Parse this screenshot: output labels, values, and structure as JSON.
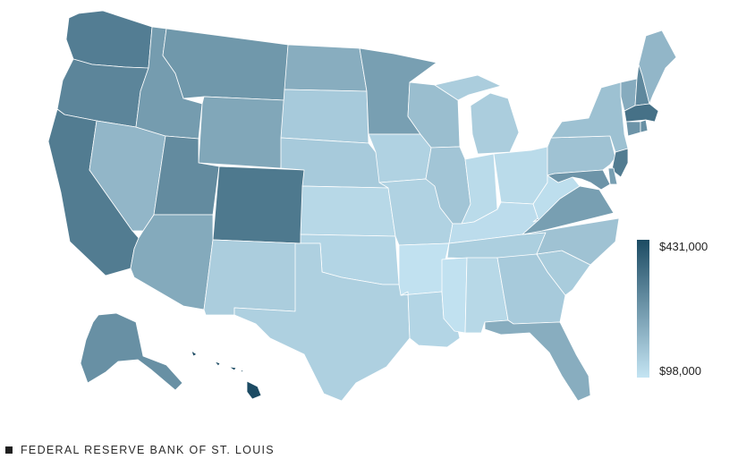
{
  "legend": {
    "max_label": "$431,000",
    "min_label": "$98,000",
    "min_value": 98000,
    "max_value": 431000,
    "color_low": "#c4e4f3",
    "color_high": "#1c4b63"
  },
  "footer": {
    "source": "FEDERAL RESERVE BANK OF ST. LOUIS"
  },
  "map_data": {
    "type": "choropleth",
    "region": "United States",
    "states": [
      {
        "name": "Washington",
        "level": 0.67
      },
      {
        "name": "Oregon",
        "level": 0.62
      },
      {
        "name": "California",
        "level": 0.68
      },
      {
        "name": "Nevada",
        "level": 0.3
      },
      {
        "name": "Idaho",
        "level": 0.47
      },
      {
        "name": "Montana",
        "level": 0.5
      },
      {
        "name": "Wyoming",
        "level": 0.4
      },
      {
        "name": "Utah",
        "level": 0.58
      },
      {
        "name": "Colorado",
        "level": 0.7
      },
      {
        "name": "Arizona",
        "level": 0.38
      },
      {
        "name": "New Mexico",
        "level": 0.15
      },
      {
        "name": "North Dakota",
        "level": 0.36
      },
      {
        "name": "South Dakota",
        "level": 0.17
      },
      {
        "name": "Nebraska",
        "level": 0.17
      },
      {
        "name": "Kansas",
        "level": 0.08
      },
      {
        "name": "Oklahoma",
        "level": 0.1
      },
      {
        "name": "Texas",
        "level": 0.13
      },
      {
        "name": "Minnesota",
        "level": 0.45
      },
      {
        "name": "Iowa",
        "level": 0.12
      },
      {
        "name": "Missouri",
        "level": 0.12
      },
      {
        "name": "Arkansas",
        "level": 0.02
      },
      {
        "name": "Louisiana",
        "level": 0.1
      },
      {
        "name": "Wisconsin",
        "level": 0.25
      },
      {
        "name": "Illinois",
        "level": 0.2
      },
      {
        "name": "Michigan",
        "level": 0.15
      },
      {
        "name": "Indiana",
        "level": 0.06
      },
      {
        "name": "Ohio",
        "level": 0.06
      },
      {
        "name": "Kentucky",
        "level": 0.05
      },
      {
        "name": "Tennessee",
        "level": 0.14
      },
      {
        "name": "Mississippi",
        "level": 0.02
      },
      {
        "name": "Alabama",
        "level": 0.08
      },
      {
        "name": "Georgia",
        "level": 0.17
      },
      {
        "name": "Florida",
        "level": 0.36
      },
      {
        "name": "South Carolina",
        "level": 0.16
      },
      {
        "name": "North Carolina",
        "level": 0.22
      },
      {
        "name": "Virginia",
        "level": 0.45
      },
      {
        "name": "West Virginia",
        "level": 0.04
      },
      {
        "name": "Pennsylvania",
        "level": 0.22
      },
      {
        "name": "New York",
        "level": 0.23
      },
      {
        "name": "Vermont",
        "level": 0.37
      },
      {
        "name": "New Hampshire",
        "level": 0.6
      },
      {
        "name": "Maine",
        "level": 0.3
      },
      {
        "name": "Massachusetts",
        "level": 0.75
      },
      {
        "name": "Connecticut",
        "level": 0.52
      },
      {
        "name": "Rhode Island",
        "level": 0.55
      },
      {
        "name": "New Jersey",
        "level": 0.68
      },
      {
        "name": "Delaware",
        "level": 0.45
      },
      {
        "name": "Maryland",
        "level": 0.52
      },
      {
        "name": "Alaska",
        "level": 0.55
      },
      {
        "name": "Hawaii",
        "level": 1.0
      }
    ]
  }
}
